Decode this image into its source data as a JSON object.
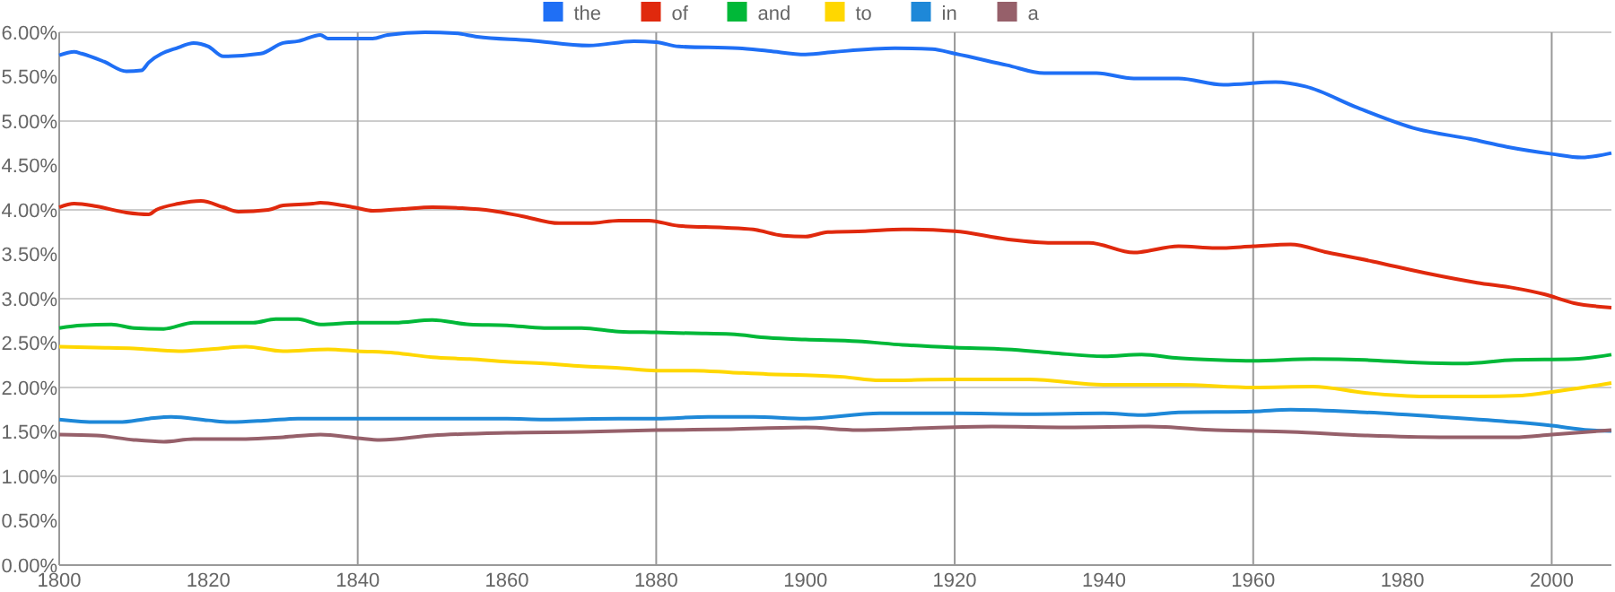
{
  "chart_data": {
    "type": "line",
    "xlim": [
      1800,
      2008
    ],
    "ylim": [
      0,
      6
    ],
    "xticks": [
      1800,
      1820,
      1840,
      1860,
      1880,
      1900,
      1920,
      1940,
      1960,
      1980,
      2000
    ],
    "yticks": [
      {
        "value": 0,
        "label": "0.00%"
      },
      {
        "value": 0.5,
        "label": "0.50%"
      },
      {
        "value": 1,
        "label": "1.00%"
      },
      {
        "value": 1.5,
        "label": "1.50%"
      },
      {
        "value": 2,
        "label": "2.00%"
      },
      {
        "value": 2.5,
        "label": "2.50%"
      },
      {
        "value": 3,
        "label": "3.00%"
      },
      {
        "value": 3.5,
        "label": "3.50%"
      },
      {
        "value": 4,
        "label": "4.00%"
      },
      {
        "value": 4.5,
        "label": "4.50%"
      },
      {
        "value": 5,
        "label": "5.00%"
      },
      {
        "value": 5.5,
        "label": "5.50%"
      },
      {
        "value": 6,
        "label": "6.00%"
      }
    ],
    "grid": true,
    "legend": "top",
    "marker": "none",
    "line_style": "solid",
    "series": [
      {
        "name": "the",
        "color": "#1f6ff5",
        "x": [
          1800,
          1802,
          1803,
          1806,
          1809,
          1811,
          1812,
          1816,
          1818,
          1820,
          1822,
          1827,
          1830,
          1832,
          1835,
          1836,
          1842,
          1844,
          1849,
          1853,
          1856,
          1863,
          1871,
          1877,
          1880,
          1883,
          1891,
          1895,
          1900,
          1904,
          1912,
          1917,
          1920,
          1927,
          1932,
          1939,
          1944,
          1950,
          1956,
          1963,
          1967,
          1974,
          1982,
          1989,
          1994,
          2000,
          2004,
          2008
        ],
        "values": [
          5.74,
          5.78,
          5.76,
          5.67,
          5.56,
          5.57,
          5.66,
          5.83,
          5.88,
          5.84,
          5.73,
          5.76,
          5.88,
          5.9,
          5.97,
          5.93,
          5.93,
          5.97,
          6.0,
          5.99,
          5.95,
          5.91,
          5.85,
          5.9,
          5.89,
          5.84,
          5.82,
          5.79,
          5.75,
          5.78,
          5.82,
          5.81,
          5.76,
          5.63,
          5.54,
          5.54,
          5.48,
          5.48,
          5.41,
          5.44,
          5.39,
          5.15,
          4.91,
          4.8,
          4.71,
          4.63,
          4.59,
          4.64
        ]
      },
      {
        "name": "of",
        "color": "#e0290d",
        "x": [
          1800,
          1802,
          1805,
          1809,
          1812,
          1813,
          1816,
          1819,
          1822,
          1824,
          1828,
          1830,
          1834,
          1835,
          1838,
          1840,
          1842,
          1846,
          1850,
          1854,
          1858,
          1862,
          1867,
          1871,
          1875,
          1879,
          1883,
          1889,
          1893,
          1897,
          1900,
          1903,
          1908,
          1913,
          1920,
          1927,
          1933,
          1938,
          1944,
          1950,
          1955,
          1960,
          1965,
          1970,
          1976,
          1983,
          1990,
          1995,
          1999,
          2003,
          2008
        ],
        "values": [
          4.03,
          4.07,
          4.04,
          3.97,
          3.95,
          4.0,
          4.07,
          4.1,
          4.03,
          3.98,
          4.0,
          4.05,
          4.07,
          4.08,
          4.05,
          4.02,
          3.99,
          4.01,
          4.03,
          4.02,
          3.99,
          3.93,
          3.85,
          3.85,
          3.88,
          3.88,
          3.82,
          3.8,
          3.78,
          3.71,
          3.7,
          3.75,
          3.76,
          3.78,
          3.76,
          3.67,
          3.63,
          3.63,
          3.52,
          3.59,
          3.57,
          3.59,
          3.61,
          3.52,
          3.42,
          3.29,
          3.18,
          3.12,
          3.05,
          2.95,
          2.9
        ]
      },
      {
        "name": "and",
        "color": "#00b838",
        "x": [
          1800,
          1803,
          1807,
          1810,
          1814,
          1818,
          1822,
          1826,
          1829,
          1832,
          1835,
          1840,
          1845,
          1850,
          1855,
          1860,
          1865,
          1870,
          1875,
          1880,
          1885,
          1890,
          1895,
          1900,
          1907,
          1913,
          1920,
          1927,
          1933,
          1940,
          1945,
          1950,
          1955,
          1960,
          1968,
          1975,
          1982,
          1988,
          1995,
          2003,
          2008
        ],
        "values": [
          2.67,
          2.7,
          2.71,
          2.67,
          2.66,
          2.73,
          2.73,
          2.73,
          2.77,
          2.77,
          2.71,
          2.73,
          2.73,
          2.76,
          2.71,
          2.7,
          2.67,
          2.67,
          2.63,
          2.62,
          2.61,
          2.6,
          2.56,
          2.54,
          2.52,
          2.48,
          2.45,
          2.43,
          2.39,
          2.35,
          2.37,
          2.33,
          2.31,
          2.3,
          2.32,
          2.31,
          2.28,
          2.27,
          2.31,
          2.32,
          2.37
        ]
      },
      {
        "name": "to",
        "color": "#ffd700",
        "x": [
          1800,
          1805,
          1810,
          1816,
          1820,
          1825,
          1830,
          1836,
          1840,
          1845,
          1850,
          1855,
          1860,
          1865,
          1870,
          1875,
          1880,
          1885,
          1890,
          1895,
          1900,
          1905,
          1910,
          1920,
          1930,
          1940,
          1950,
          1960,
          1968,
          1975,
          1983,
          1990,
          1996,
          2000,
          2005,
          2008
        ],
        "values": [
          2.46,
          2.45,
          2.44,
          2.41,
          2.43,
          2.46,
          2.41,
          2.43,
          2.41,
          2.39,
          2.34,
          2.32,
          2.29,
          2.27,
          2.24,
          2.22,
          2.19,
          2.19,
          2.17,
          2.15,
          2.14,
          2.12,
          2.08,
          2.09,
          2.09,
          2.03,
          2.03,
          2.0,
          2.01,
          1.94,
          1.9,
          1.9,
          1.91,
          1.95,
          2.01,
          2.05
        ]
      },
      {
        "name": "in",
        "color": "#1e88d8",
        "x": [
          1800,
          1805,
          1808,
          1812,
          1815,
          1820,
          1823,
          1828,
          1832,
          1840,
          1850,
          1860,
          1865,
          1875,
          1880,
          1887,
          1893,
          1900,
          1910,
          1920,
          1930,
          1940,
          1945,
          1950,
          1960,
          1965,
          1975,
          1985,
          1995,
          2000,
          2005,
          2008
        ],
        "values": [
          1.64,
          1.61,
          1.61,
          1.65,
          1.67,
          1.63,
          1.61,
          1.63,
          1.65,
          1.65,
          1.65,
          1.65,
          1.64,
          1.65,
          1.65,
          1.67,
          1.67,
          1.65,
          1.71,
          1.71,
          1.7,
          1.71,
          1.69,
          1.72,
          1.73,
          1.75,
          1.72,
          1.67,
          1.61,
          1.57,
          1.52,
          1.51
        ]
      },
      {
        "name": "a",
        "color": "#96606a",
        "x": [
          1800,
          1805,
          1810,
          1814,
          1818,
          1825,
          1830,
          1835,
          1840,
          1843,
          1850,
          1860,
          1870,
          1880,
          1890,
          1900,
          1907,
          1915,
          1925,
          1935,
          1946,
          1955,
          1965,
          1975,
          1985,
          1995,
          2000,
          2008
        ],
        "values": [
          1.47,
          1.46,
          1.41,
          1.39,
          1.42,
          1.42,
          1.44,
          1.47,
          1.43,
          1.41,
          1.46,
          1.49,
          1.5,
          1.52,
          1.53,
          1.55,
          1.52,
          1.54,
          1.56,
          1.55,
          1.56,
          1.52,
          1.5,
          1.46,
          1.44,
          1.44,
          1.47,
          1.52
        ]
      }
    ]
  }
}
